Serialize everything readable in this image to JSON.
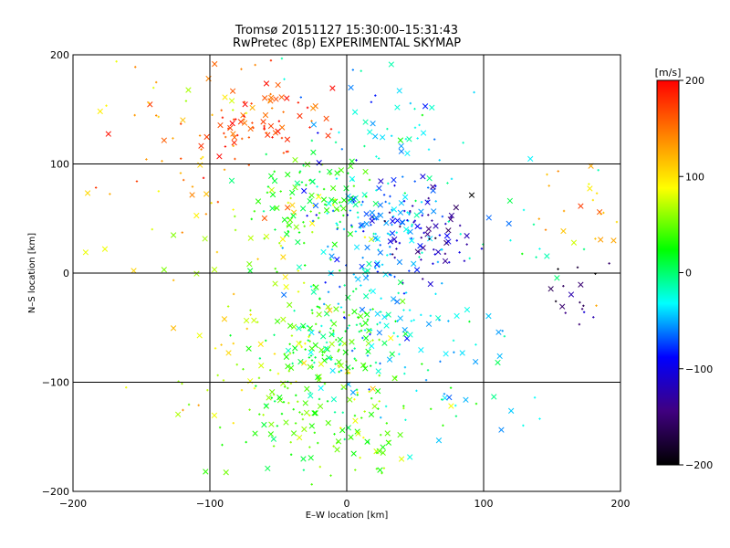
{
  "chart_data": {
    "type": "scatter",
    "title": "Tromsø 20151127 15:30:00–15:31:43",
    "subtitle": "RwPretec (8p) EXPERIMENTAL SKYMAP",
    "xlabel": "E–W location [km]",
    "ylabel": "N–S location [km]",
    "xlim": [
      -200,
      200
    ],
    "ylim": [
      -200,
      200
    ],
    "x_ticks": [
      "−200",
      "−100",
      "0",
      "100",
      "200"
    ],
    "y_ticks": [
      "−200",
      "−100",
      "0",
      "100",
      "200"
    ],
    "grid": true,
    "markers": "small crosses and dots colored by radial velocity",
    "colorbar": {
      "label": "[m/s]",
      "range": [
        -200,
        200
      ],
      "ticks": [
        "200",
        "100",
        "0",
        "−100",
        "−200"
      ],
      "colormap": [
        "#000000",
        "#400080",
        "#0000ff",
        "#00ffff",
        "#00ff00",
        "#ffff00",
        "#ff8000",
        "#ff0000"
      ]
    },
    "clusters": [
      {
        "x": -60,
        "y": 140,
        "sx": 25,
        "sy": 15,
        "v": 175,
        "n": 70
      },
      {
        "x": -100,
        "y": 120,
        "sx": 45,
        "sy": 40,
        "v": 140,
        "n": 50
      },
      {
        "x": -150,
        "y": 170,
        "sx": 25,
        "sy": 20,
        "v": 110,
        "n": 15
      },
      {
        "x": -35,
        "y": 60,
        "sx": 25,
        "sy": 30,
        "v": 40,
        "n": 70
      },
      {
        "x": -10,
        "y": 70,
        "sx": 15,
        "sy": 20,
        "v": 20,
        "n": 50
      },
      {
        "x": 30,
        "y": 50,
        "sx": 25,
        "sy": 20,
        "v": -60,
        "n": 100
      },
      {
        "x": 60,
        "y": 40,
        "sx": 15,
        "sy": 20,
        "v": -130,
        "n": 60
      },
      {
        "x": 20,
        "y": 120,
        "sx": 40,
        "sy": 35,
        "v": -30,
        "n": 60
      },
      {
        "x": 15,
        "y": -10,
        "sx": 25,
        "sy": 25,
        "v": -45,
        "n": 90
      },
      {
        "x": -10,
        "y": -60,
        "sx": 25,
        "sy": 25,
        "v": 25,
        "n": 110
      },
      {
        "x": 40,
        "y": -70,
        "sx": 35,
        "sy": 25,
        "v": -30,
        "n": 70
      },
      {
        "x": -30,
        "y": -90,
        "sx": 30,
        "sy": 25,
        "v": 50,
        "n": 60
      },
      {
        "x": -15,
        "y": -140,
        "sx": 35,
        "sy": 25,
        "v": 40,
        "n": 110
      },
      {
        "x": -70,
        "y": -100,
        "sx": 40,
        "sy": 40,
        "v": 90,
        "n": 25
      },
      {
        "x": 175,
        "y": 60,
        "sx": 18,
        "sy": 30,
        "v": 120,
        "n": 25
      },
      {
        "x": 170,
        "y": -15,
        "sx": 20,
        "sy": 25,
        "v": -170,
        "n": 20
      },
      {
        "x": 120,
        "y": 30,
        "sx": 40,
        "sy": 50,
        "v": -20,
        "n": 25
      },
      {
        "x": -90,
        "y": 20,
        "sx": 50,
        "sy": 60,
        "v": 80,
        "n": 40
      },
      {
        "x": 90,
        "y": -120,
        "sx": 30,
        "sy": 30,
        "v": -40,
        "n": 15
      }
    ]
  }
}
